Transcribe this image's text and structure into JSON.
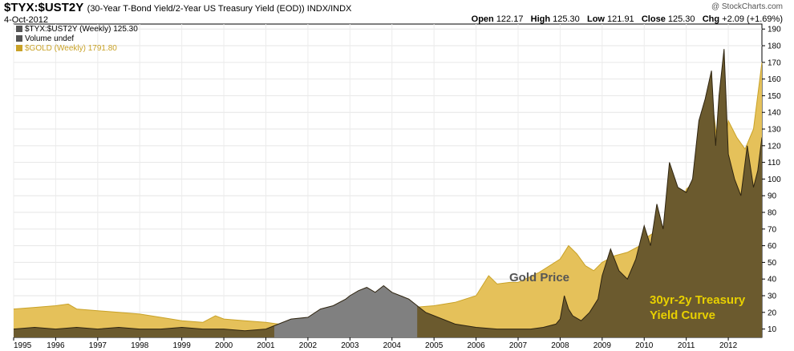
{
  "header": {
    "symbol": "$TYX:$UST2Y",
    "description": "(30-Year T-Bond Yield/2-Year US Treasury Yield (EOD)) INDX/INDX",
    "date": "4-Oct-2012",
    "brand": "@ StockCharts.com",
    "ohlc": [
      {
        "label": "Open",
        "value": "122.17"
      },
      {
        "label": "High",
        "value": "125.30"
      },
      {
        "label": "Low",
        "value": "121.91"
      },
      {
        "label": "Close",
        "value": "125.30"
      },
      {
        "label": "Chg",
        "value": "+2.09 (+1.69%)"
      }
    ]
  },
  "legend": [
    {
      "text": "$TYX:$UST2Y (Weekly) 125.30",
      "color": "#555555"
    },
    {
      "text": "Volume undef",
      "color": "#555555"
    },
    {
      "text": "$GOLD (Weekly) 1791.80",
      "color": "#c9a227"
    }
  ],
  "annotations": {
    "gold": "Gold Price",
    "curve_line1": "30yr-2y Treasury",
    "curve_line2": "Yield Curve"
  },
  "colors": {
    "gold_fill": "#e5c15a",
    "gold_stroke": "#c9a227",
    "curve_fill": "#6b5a2e",
    "curve_stroke": "#2e2410",
    "curve_gray": "#808080",
    "gold_text": "#555555",
    "curve_text": "#e8d000"
  },
  "chart_data": {
    "type": "area",
    "title": "$TYX:$UST2Y (30-Year T-Bond Yield/2-Year US Treasury Yield (EOD))",
    "xlabel": "",
    "ylabel": "",
    "xlim": [
      1995.0,
      2012.8
    ],
    "ylim": [
      5,
      193
    ],
    "x_ticks": [
      "1995",
      "1996",
      "1997",
      "1998",
      "1999",
      "2000",
      "2001",
      "2002",
      "2003",
      "2004",
      "2005",
      "2006",
      "2007",
      "2008",
      "2009",
      "2010",
      "2011",
      "2012"
    ],
    "y_ticks": [
      10,
      20,
      30,
      40,
      50,
      60,
      70,
      80,
      90,
      100,
      110,
      120,
      130,
      140,
      150,
      160,
      170,
      180,
      190
    ],
    "y_axis_side": "right",
    "series": [
      {
        "name": "$GOLD (Weekly)",
        "last": 1791.8,
        "x": [
          1995.0,
          1995.5,
          1996.0,
          1996.3,
          1996.5,
          1997.0,
          1997.5,
          1998.0,
          1998.5,
          1999.0,
          1999.5,
          1999.8,
          2000.0,
          2000.5,
          2001.0,
          2001.3,
          2001.6,
          2001.9,
          2002.0,
          2002.5,
          2003.0,
          2003.5,
          2004.0,
          2004.5,
          2005.0,
          2005.5,
          2006.0,
          2006.3,
          2006.5,
          2006.8,
          2007.0,
          2007.5,
          2008.0,
          2008.2,
          2008.4,
          2008.6,
          2008.8,
          2009.0,
          2009.3,
          2009.6,
          2009.9,
          2010.0,
          2010.3,
          2010.6,
          2010.9,
          2011.0,
          2011.3,
          2011.5,
          2011.65,
          2011.75,
          2011.9,
          2012.0,
          2012.2,
          2012.4,
          2012.6,
          2012.8
        ],
        "values": [
          22,
          23,
          24,
          25,
          22,
          21,
          20,
          19,
          17,
          15,
          14,
          18,
          16,
          15,
          14,
          13,
          14,
          15,
          16,
          18,
          20,
          22,
          24,
          23,
          24,
          26,
          30,
          42,
          37,
          38,
          38,
          44,
          52,
          60,
          55,
          48,
          45,
          50,
          54,
          56,
          60,
          64,
          69,
          74,
          85,
          94,
          100,
          112,
          140,
          120,
          118,
          135,
          125,
          118,
          130,
          170
        ]
      },
      {
        "name": "$TYX:$UST2Y (Weekly)",
        "last": 125.3,
        "x": [
          1995.0,
          1995.5,
          1996.0,
          1996.5,
          1997.0,
          1997.5,
          1998.0,
          1998.5,
          1999.0,
          1999.5,
          2000.0,
          2000.5,
          2001.0,
          2001.3,
          2001.6,
          2002.0,
          2002.3,
          2002.6,
          2002.9,
          2003.0,
          2003.2,
          2003.4,
          2003.6,
          2003.8,
          2004.0,
          2004.2,
          2004.4,
          2004.6,
          2004.8,
          2005.0,
          2005.5,
          2006.0,
          2006.5,
          2007.0,
          2007.3,
          2007.6,
          2007.9,
          2008.0,
          2008.1,
          2008.2,
          2008.3,
          2008.5,
          2008.7,
          2008.9,
          2009.0,
          2009.2,
          2009.4,
          2009.6,
          2009.8,
          2010.0,
          2010.15,
          2010.3,
          2010.45,
          2010.6,
          2010.8,
          2011.0,
          2011.15,
          2011.3,
          2011.45,
          2011.6,
          2011.7,
          2011.78,
          2011.9,
          2012.0,
          2012.15,
          2012.3,
          2012.45,
          2012.6,
          2012.7,
          2012.8
        ],
        "values": [
          10,
          11,
          10,
          11,
          10,
          11,
          10,
          10,
          11,
          10,
          10,
          9,
          10,
          13,
          16,
          17,
          22,
          24,
          28,
          30,
          33,
          35,
          32,
          36,
          32,
          30,
          28,
          24,
          20,
          18,
          13,
          11,
          10,
          10,
          10,
          11,
          13,
          16,
          30,
          22,
          18,
          15,
          20,
          28,
          42,
          58,
          45,
          40,
          52,
          72,
          60,
          85,
          70,
          110,
          95,
          92,
          100,
          135,
          148,
          165,
          120,
          150,
          178,
          115,
          100,
          90,
          120,
          95,
          105,
          125
        ]
      }
    ],
    "annotations": [
      "Gold Price",
      "30yr-2y Treasury Yield Curve"
    ]
  }
}
